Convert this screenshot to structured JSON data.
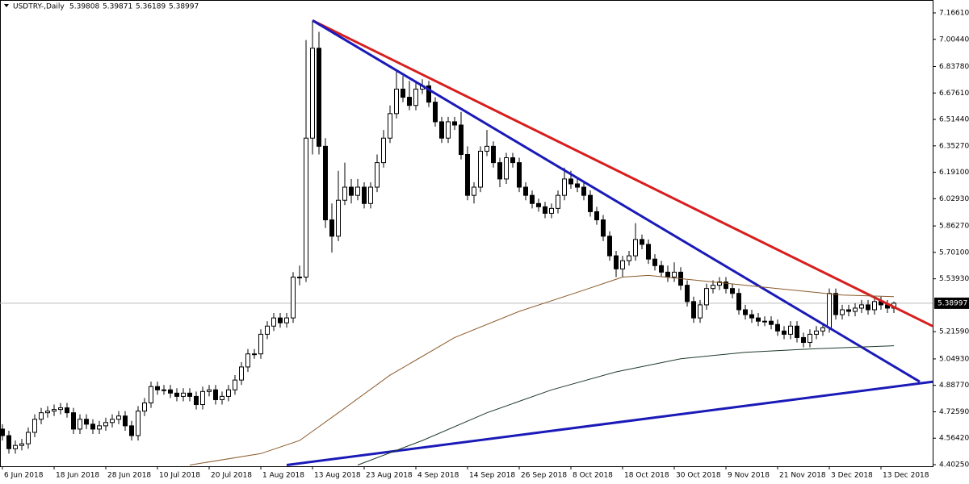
{
  "chart_data": {
    "type": "candlestick",
    "symbol": "USDTRY-,Daily",
    "header_values": [
      5.39808,
      5.39871,
      5.36189,
      5.38997
    ],
    "current_price": 5.38997,
    "ylim": [
      4.3926,
      7.245
    ],
    "xlim": [
      -0.375,
      144
    ],
    "yticks": [
      {
        "value": 7.1661,
        "label": "7.16610"
      },
      {
        "value": 7.0044,
        "label": "7.00440"
      },
      {
        "value": 6.8378,
        "label": "6.83780"
      },
      {
        "value": 6.6761,
        "label": "6.67610"
      },
      {
        "value": 6.5144,
        "label": "6.51440"
      },
      {
        "value": 6.3527,
        "label": "6.35270"
      },
      {
        "value": 6.191,
        "label": "6.19100"
      },
      {
        "value": 6.0293,
        "label": "6.02930"
      },
      {
        "value": 5.8627,
        "label": "5.86270"
      },
      {
        "value": 5.701,
        "label": "5.70100"
      },
      {
        "value": 5.5393,
        "label": "5.53930"
      },
      {
        "value": 5.2159,
        "label": "5.21590"
      },
      {
        "value": 5.0493,
        "label": "5.04930"
      },
      {
        "value": 4.8877,
        "label": "4.88770"
      },
      {
        "value": 4.7259,
        "label": "4.72590"
      },
      {
        "value": 4.5642,
        "label": "4.56420"
      },
      {
        "value": 4.4025,
        "label": "4.40250"
      }
    ],
    "categories": [
      "6 Jun 2018",
      null,
      null,
      null,
      null,
      null,
      null,
      null,
      "18 Jun 2018",
      null,
      null,
      null,
      null,
      null,
      null,
      null,
      "28 Jun 2018",
      null,
      null,
      null,
      null,
      null,
      null,
      null,
      "10 Jul 2018",
      null,
      null,
      null,
      null,
      null,
      null,
      null,
      "20 Jul 2018",
      null,
      null,
      null,
      null,
      null,
      null,
      null,
      "1 Aug 2018",
      null,
      null,
      null,
      null,
      null,
      null,
      null,
      "13 Aug 2018",
      null,
      null,
      null,
      null,
      null,
      null,
      null,
      "23 Aug 2018",
      null,
      null,
      null,
      null,
      null,
      null,
      null,
      "4 Sep 2018",
      null,
      null,
      null,
      null,
      null,
      null,
      null,
      "14 Sep 2018",
      null,
      null,
      null,
      null,
      null,
      null,
      null,
      "26 Sep 2018",
      null,
      null,
      null,
      null,
      null,
      null,
      null,
      "8 Oct 2018",
      null,
      null,
      null,
      null,
      null,
      null,
      null,
      "18 Oct 2018",
      null,
      null,
      null,
      null,
      null,
      null,
      null,
      "30 Oct 2018",
      null,
      null,
      null,
      null,
      null,
      null,
      null,
      "9 Nov 2018",
      null,
      null,
      null,
      null,
      null,
      null,
      null,
      "21 Nov 2018",
      null,
      null,
      null,
      null,
      null,
      null,
      null,
      "3 Dec 2018",
      null,
      null,
      null,
      null,
      null,
      null,
      null,
      "13 Dec 2018",
      null,
      null
    ],
    "candles": [
      [
        4.62,
        4.65,
        4.55,
        4.58
      ],
      [
        4.58,
        4.61,
        4.47,
        4.5
      ],
      [
        4.5,
        4.55,
        4.47,
        4.52
      ],
      [
        4.52,
        4.56,
        4.49,
        4.53
      ],
      [
        4.53,
        4.63,
        4.5,
        4.6
      ],
      [
        4.6,
        4.71,
        4.57,
        4.68
      ],
      [
        4.68,
        4.75,
        4.65,
        4.72
      ],
      [
        4.72,
        4.76,
        4.69,
        4.73
      ],
      [
        4.73,
        4.77,
        4.7,
        4.74
      ],
      [
        4.74,
        4.78,
        4.71,
        4.75
      ],
      [
        4.75,
        4.78,
        4.69,
        4.72
      ],
      [
        4.72,
        4.75,
        4.59,
        4.62
      ],
      [
        4.62,
        4.71,
        4.59,
        4.68
      ],
      [
        4.68,
        4.71,
        4.62,
        4.65
      ],
      [
        4.65,
        4.68,
        4.59,
        4.62
      ],
      [
        4.62,
        4.67,
        4.59,
        4.64
      ],
      [
        4.64,
        4.69,
        4.61,
        4.66
      ],
      [
        4.66,
        4.71,
        4.63,
        4.68
      ],
      [
        4.68,
        4.73,
        4.65,
        4.7
      ],
      [
        4.7,
        4.73,
        4.61,
        4.64
      ],
      [
        4.64,
        4.67,
        4.55,
        4.58
      ],
      [
        4.58,
        4.76,
        4.55,
        4.73
      ],
      [
        4.73,
        4.81,
        4.7,
        4.78
      ],
      [
        4.78,
        4.91,
        4.75,
        4.88
      ],
      [
        4.88,
        4.91,
        4.83,
        4.86
      ],
      [
        4.86,
        4.89,
        4.83,
        4.86
      ],
      [
        4.86,
        4.89,
        4.81,
        4.84
      ],
      [
        4.84,
        4.87,
        4.79,
        4.82
      ],
      [
        4.82,
        4.87,
        4.79,
        4.84
      ],
      [
        4.84,
        4.87,
        4.79,
        4.82
      ],
      [
        4.82,
        4.85,
        4.74,
        4.77
      ],
      [
        4.77,
        4.88,
        4.74,
        4.85
      ],
      [
        4.85,
        4.89,
        4.82,
        4.86
      ],
      [
        4.86,
        4.89,
        4.77,
        4.8
      ],
      [
        4.8,
        4.85,
        4.77,
        4.82
      ],
      [
        4.82,
        4.89,
        4.79,
        4.86
      ],
      [
        4.86,
        4.95,
        4.83,
        4.92
      ],
      [
        4.92,
        5.03,
        4.89,
        5.0
      ],
      [
        5.0,
        5.11,
        4.97,
        5.08
      ],
      [
        5.08,
        5.11,
        5.05,
        5.08
      ],
      [
        5.08,
        5.23,
        5.05,
        5.2
      ],
      [
        5.2,
        5.28,
        5.17,
        5.25
      ],
      [
        5.25,
        5.33,
        5.22,
        5.3
      ],
      [
        5.3,
        5.33,
        5.24,
        5.27
      ],
      [
        5.27,
        5.33,
        5.24,
        5.3
      ],
      [
        5.3,
        5.58,
        5.27,
        5.55
      ],
      [
        5.55,
        5.62,
        5.5,
        5.55
      ],
      [
        5.55,
        7.0,
        5.52,
        6.4
      ],
      [
        6.4,
        7.12,
        6.3,
        6.95
      ],
      [
        6.95,
        7.05,
        6.3,
        6.35
      ],
      [
        6.35,
        6.4,
        5.85,
        5.9
      ],
      [
        5.9,
        6.0,
        5.7,
        5.8
      ],
      [
        5.8,
        6.2,
        5.77,
        6.02
      ],
      [
        6.02,
        6.25,
        5.99,
        6.1
      ],
      [
        6.1,
        6.15,
        6.0,
        6.05
      ],
      [
        6.05,
        6.15,
        6.02,
        6.1
      ],
      [
        6.1,
        6.13,
        5.97,
        6.0
      ],
      [
        6.0,
        6.13,
        5.97,
        6.1
      ],
      [
        6.1,
        6.3,
        6.07,
        6.25
      ],
      [
        6.25,
        6.45,
        6.22,
        6.4
      ],
      [
        6.4,
        6.6,
        6.37,
        6.55
      ],
      [
        6.55,
        6.82,
        6.52,
        6.7
      ],
      [
        6.7,
        6.78,
        6.62,
        6.65
      ],
      [
        6.65,
        6.75,
        6.57,
        6.6
      ],
      [
        6.6,
        6.75,
        6.57,
        6.7
      ],
      [
        6.7,
        6.76,
        6.67,
        6.72
      ],
      [
        6.72,
        6.75,
        6.59,
        6.62
      ],
      [
        6.62,
        6.65,
        6.47,
        6.5
      ],
      [
        6.5,
        6.53,
        6.37,
        6.4
      ],
      [
        6.4,
        6.53,
        6.37,
        6.5
      ],
      [
        6.5,
        6.53,
        6.45,
        6.48
      ],
      [
        6.48,
        6.56,
        6.27,
        6.3
      ],
      [
        6.3,
        6.35,
        6.02,
        6.05
      ],
      [
        6.05,
        6.13,
        6.0,
        6.1
      ],
      [
        6.1,
        6.35,
        6.07,
        6.32
      ],
      [
        6.32,
        6.45,
        6.29,
        6.35
      ],
      [
        6.35,
        6.38,
        6.22,
        6.25
      ],
      [
        6.25,
        6.28,
        6.1,
        6.15
      ],
      [
        6.15,
        6.31,
        6.12,
        6.28
      ],
      [
        6.28,
        6.31,
        6.22,
        6.25
      ],
      [
        6.25,
        6.28,
        6.07,
        6.1
      ],
      [
        6.1,
        6.13,
        6.02,
        6.05
      ],
      [
        6.05,
        6.08,
        5.97,
        6.0
      ],
      [
        6.0,
        6.03,
        5.95,
        5.98
      ],
      [
        5.98,
        6.01,
        5.91,
        5.94
      ],
      [
        5.94,
        6.0,
        5.91,
        5.97
      ],
      [
        5.97,
        6.08,
        5.94,
        6.05
      ],
      [
        6.05,
        6.22,
        6.02,
        6.15
      ],
      [
        6.15,
        6.2,
        6.09,
        6.12
      ],
      [
        6.12,
        6.15,
        6.07,
        6.1
      ],
      [
        6.1,
        6.13,
        6.02,
        6.05
      ],
      [
        6.05,
        6.08,
        5.92,
        5.95
      ],
      [
        5.95,
        5.98,
        5.87,
        5.9
      ],
      [
        5.9,
        5.93,
        5.77,
        5.8
      ],
      [
        5.8,
        5.83,
        5.65,
        5.68
      ],
      [
        5.68,
        5.71,
        5.55,
        5.6
      ],
      [
        5.6,
        5.68,
        5.55,
        5.65
      ],
      [
        5.65,
        5.71,
        5.62,
        5.68
      ],
      [
        5.68,
        5.88,
        5.65,
        5.78
      ],
      [
        5.78,
        5.81,
        5.72,
        5.75
      ],
      [
        5.75,
        5.78,
        5.63,
        5.66
      ],
      [
        5.66,
        5.69,
        5.59,
        5.62
      ],
      [
        5.62,
        5.65,
        5.55,
        5.58
      ],
      [
        5.58,
        5.62,
        5.52,
        5.55
      ],
      [
        5.55,
        5.64,
        5.52,
        5.58
      ],
      [
        5.58,
        5.61,
        5.47,
        5.5
      ],
      [
        5.5,
        5.53,
        5.37,
        5.4
      ],
      [
        5.4,
        5.43,
        5.27,
        5.3
      ],
      [
        5.3,
        5.41,
        5.27,
        5.38
      ],
      [
        5.38,
        5.51,
        5.35,
        5.48
      ],
      [
        5.48,
        5.53,
        5.45,
        5.5
      ],
      [
        5.5,
        5.55,
        5.47,
        5.52
      ],
      [
        5.52,
        5.55,
        5.45,
        5.48
      ],
      [
        5.48,
        5.51,
        5.42,
        5.45
      ],
      [
        5.45,
        5.48,
        5.32,
        5.35
      ],
      [
        5.35,
        5.38,
        5.29,
        5.32
      ],
      [
        5.32,
        5.35,
        5.27,
        5.3
      ],
      [
        5.3,
        5.33,
        5.25,
        5.28
      ],
      [
        5.28,
        5.31,
        5.25,
        5.28
      ],
      [
        5.28,
        5.31,
        5.23,
        5.26
      ],
      [
        5.26,
        5.29,
        5.19,
        5.22
      ],
      [
        5.22,
        5.25,
        5.17,
        5.2
      ],
      [
        5.2,
        5.28,
        5.17,
        5.25
      ],
      [
        5.25,
        5.28,
        5.15,
        5.18
      ],
      [
        5.18,
        5.21,
        5.12,
        5.15
      ],
      [
        5.15,
        5.23,
        5.12,
        5.2
      ],
      [
        5.2,
        5.25,
        5.17,
        5.22
      ],
      [
        5.22,
        5.27,
        5.19,
        5.24
      ],
      [
        5.24,
        5.48,
        5.21,
        5.45
      ],
      [
        5.45,
        5.48,
        5.29,
        5.32
      ],
      [
        5.32,
        5.38,
        5.29,
        5.35
      ],
      [
        5.35,
        5.38,
        5.31,
        5.34
      ],
      [
        5.34,
        5.39,
        5.31,
        5.36
      ],
      [
        5.36,
        5.41,
        5.33,
        5.38
      ],
      [
        5.38,
        5.41,
        5.32,
        5.35
      ],
      [
        5.35,
        5.43,
        5.32,
        5.4
      ],
      [
        5.4,
        5.43,
        5.35,
        5.38
      ],
      [
        5.38,
        5.41,
        5.33,
        5.36
      ],
      [
        5.36,
        5.4,
        5.33,
        5.39
      ]
    ],
    "lines": [
      {
        "color": "#d81e1e",
        "width": 3,
        "x": [
          48,
          144
        ],
        "values": [
          7.12,
          5.25
        ]
      },
      {
        "color": "#1a1ab8",
        "width": 3,
        "x": [
          48,
          142
        ],
        "values": [
          7.12,
          4.91
        ]
      },
      {
        "color": "#1a1ab8",
        "width": 3,
        "x": [
          44,
          144
        ],
        "values": [
          4.4,
          4.91
        ]
      },
      {
        "color": "#8b5a2b",
        "width": 1,
        "x": [
          29,
          40,
          46,
          52,
          60,
          70,
          80,
          90,
          96,
          100,
          110,
          120,
          130,
          138
        ],
        "values": [
          4.4,
          4.47,
          4.55,
          4.72,
          4.95,
          5.18,
          5.34,
          5.47,
          5.55,
          5.56,
          5.52,
          5.48,
          5.44,
          5.43
        ]
      },
      {
        "color": "#1f3a2a",
        "width": 1,
        "x": [
          55,
          65,
          75,
          85,
          95,
          105,
          115,
          125,
          138
        ],
        "values": [
          4.4,
          4.55,
          4.72,
          4.86,
          4.97,
          5.05,
          5.09,
          5.11,
          5.13
        ]
      }
    ]
  }
}
